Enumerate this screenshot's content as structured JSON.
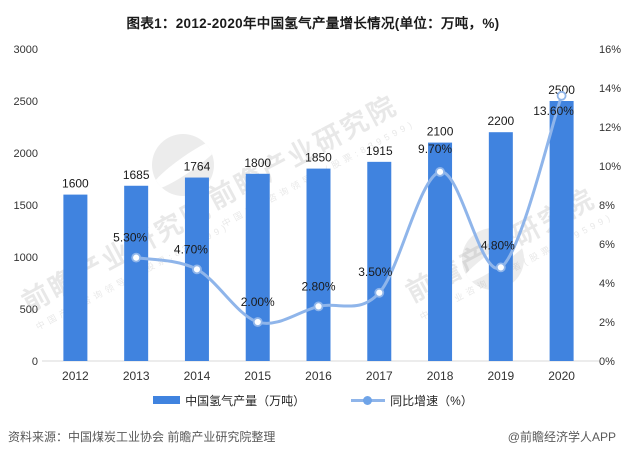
{
  "title": "图表1：2012-2020年中国氢气产量增长情况(单位：万吨，%)",
  "legend": [
    {
      "label": "中国氢气产量（万吨）"
    },
    {
      "label": "同比增速（%）"
    }
  ],
  "footer": {
    "source": "资料来源：中国煤炭工业协会 前瞻产业研究院整理",
    "credit": "@前瞻经济学人APP"
  },
  "watermark": {
    "text": "前瞻产业研究院",
    "subtext": "中国产业咨询领导者(股票:839599)"
  },
  "colors": {
    "bar": "#4083DF",
    "line": "#8FB5EA",
    "marker_fill": "#FDFEFF",
    "legend_dot": "#6FA4E8",
    "axis_text": "#333333",
    "label_text": "#1a1a1a",
    "axis_line": "#d8d8d8"
  },
  "chart_data": {
    "type": "bar+line",
    "title": "图表1：2012-2020年中国氢气产量增长情况(单位：万吨，%)",
    "xlabel": "",
    "ylabel": "",
    "grid": false,
    "legend_position": "bottom",
    "categories": [
      "2012",
      "2013",
      "2014",
      "2015",
      "2016",
      "2017",
      "2018",
      "2019",
      "2020"
    ],
    "series": [
      {
        "name": "中国氢气产量（万吨）",
        "type": "bar",
        "axis": "left",
        "values": [
          1600,
          1685,
          1764,
          1800,
          1850,
          1915,
          2100,
          2200,
          2500
        ],
        "labels": [
          "1600",
          "1685",
          "1764",
          "1800",
          "1850",
          "1915",
          "2100",
          "2200",
          "2500"
        ]
      },
      {
        "name": "同比增速（%）",
        "type": "line",
        "axis": "right",
        "values": [
          null,
          5.3,
          4.7,
          2.0,
          2.8,
          3.5,
          9.7,
          4.8,
          13.6
        ],
        "labels": [
          null,
          "5.30%",
          "4.70%",
          "2.00%",
          "2.80%",
          "3.50%",
          "9.70%",
          "4.80%",
          "13.60%"
        ]
      }
    ],
    "left_axis": {
      "min": 0,
      "max": 3000,
      "step": 500,
      "ticks": [
        "0",
        "500",
        "1000",
        "1500",
        "2000",
        "2500",
        "3000"
      ]
    },
    "right_axis": {
      "min": 0,
      "max": 16,
      "step": 2,
      "ticks": [
        "0%",
        "2%",
        "4%",
        "6%",
        "8%",
        "10%",
        "12%",
        "14%",
        "16%"
      ]
    },
    "pct_label_offsets": [
      null,
      [
        -6,
        -16
      ],
      [
        -6,
        -16
      ],
      [
        0,
        -16
      ],
      [
        0,
        -16
      ],
      [
        -4,
        -17
      ],
      [
        -5,
        -19
      ],
      [
        -3,
        -18
      ],
      [
        -8,
        19
      ]
    ]
  }
}
